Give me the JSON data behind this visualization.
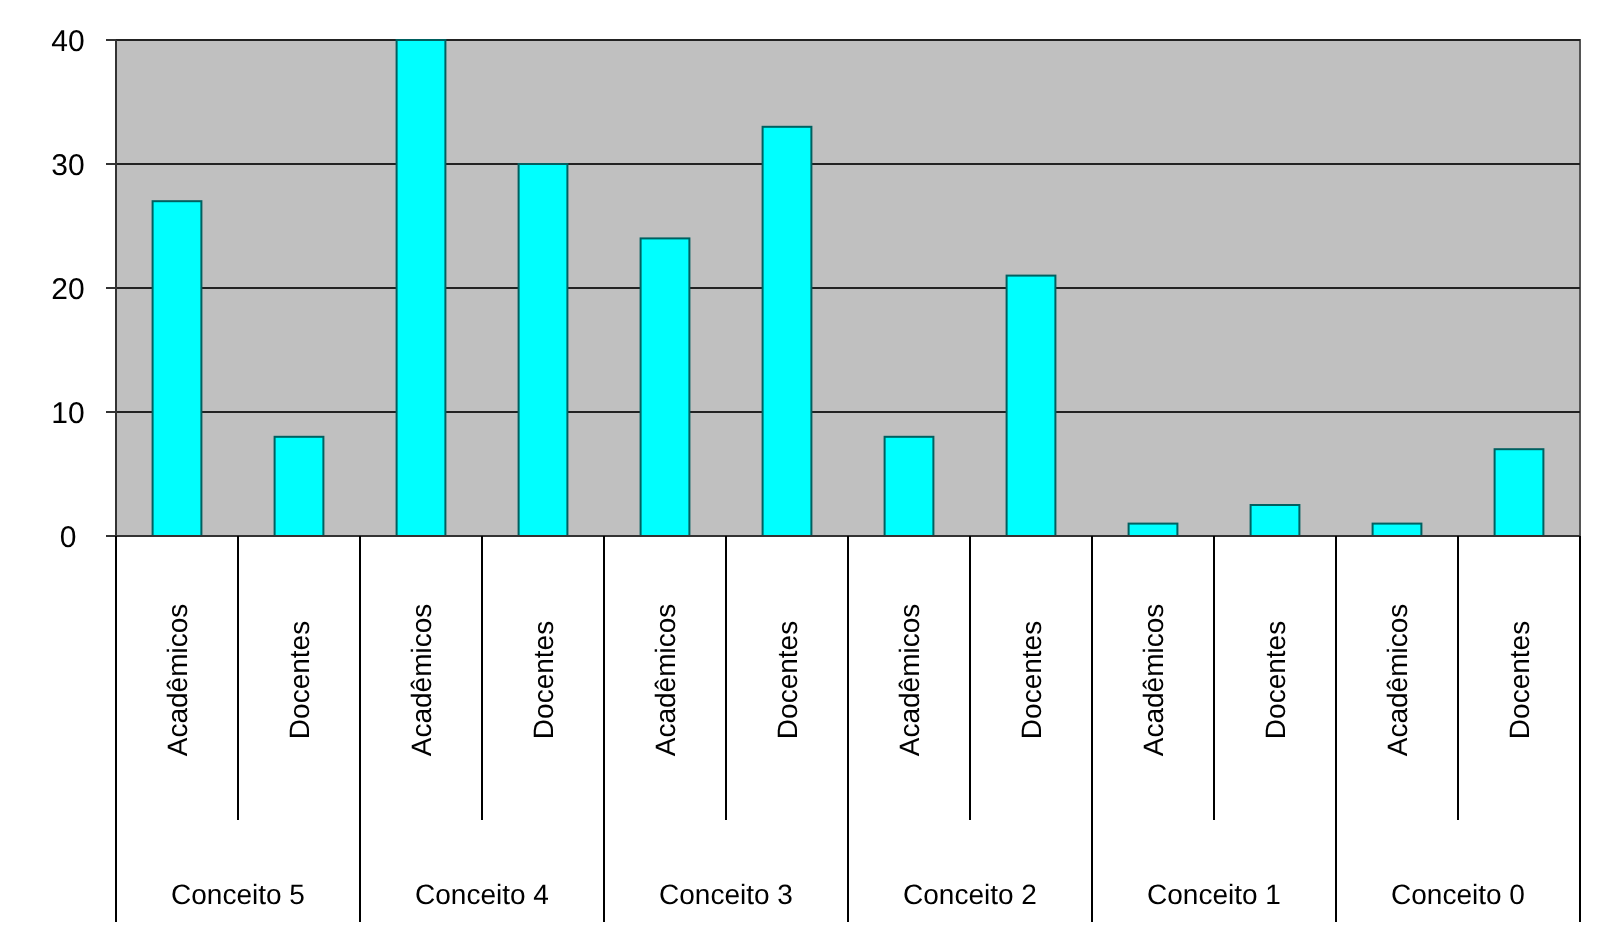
{
  "chart_data": {
    "type": "bar",
    "categories": [
      "Acadêmicos",
      "Docentes",
      "Acadêmicos",
      "Docentes",
      "Acadêmicos",
      "Docentes",
      "Acadêmicos",
      "Docentes",
      "Acadêmicos",
      "Docentes",
      "Acadêmicos",
      "Docentes"
    ],
    "values": [
      27,
      8,
      40,
      30,
      24,
      33,
      8,
      21,
      1,
      2.5,
      1,
      7
    ],
    "color": "#00ffff",
    "annotations": [
      "Conceito 5",
      "Conceito 4",
      "Conceito 3",
      "Conceito 2",
      "Conceito 1",
      "Conceito 0"
    ],
    "ylim": [
      0,
      40
    ],
    "yticks": [
      0,
      10,
      20,
      30,
      40
    ],
    "grid": "y"
  }
}
